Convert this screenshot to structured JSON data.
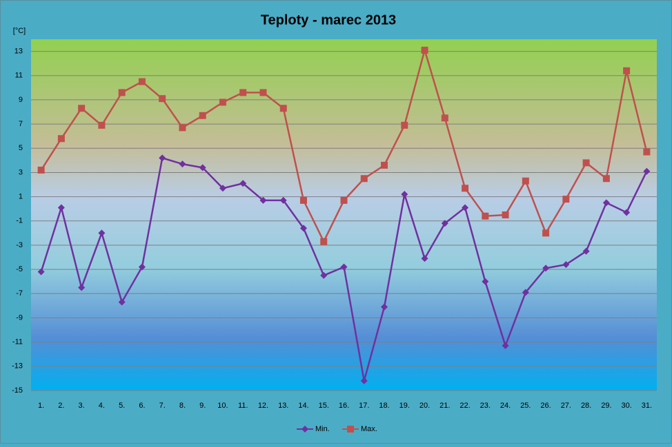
{
  "chart_data": {
    "type": "line",
    "title": "Teploty - marec 2013",
    "y_label": "[°C]",
    "categories": [
      "1.",
      "2.",
      "3.",
      "4.",
      "5.",
      "6.",
      "7.",
      "8.",
      "9.",
      "10.",
      "11.",
      "12.",
      "13.",
      "14.",
      "15.",
      "16.",
      "17.",
      "18.",
      "19.",
      "20.",
      "21.",
      "22.",
      "23.",
      "24.",
      "25.",
      "26.",
      "27.",
      "28.",
      "29.",
      "30.",
      "31."
    ],
    "series": [
      {
        "name": "Min.",
        "color": "#7030a0",
        "marker": "diamond",
        "values": [
          -5.2,
          0.1,
          -6.5,
          -2.0,
          -7.7,
          -4.8,
          4.2,
          3.7,
          3.4,
          1.7,
          2.1,
          0.7,
          0.7,
          -1.6,
          -5.5,
          -4.8,
          -14.2,
          -8.1,
          1.2,
          -4.1,
          -1.2,
          0.1,
          -6.0,
          -11.3,
          -6.9,
          -4.9,
          -4.6,
          -3.5,
          0.5,
          -0.3,
          3.1
        ]
      },
      {
        "name": "Max.",
        "color": "#c0504d",
        "marker": "square",
        "values": [
          3.2,
          5.8,
          8.3,
          6.9,
          9.6,
          10.5,
          9.1,
          6.7,
          7.7,
          8.8,
          9.6,
          9.6,
          8.3,
          0.7,
          -2.7,
          0.7,
          2.5,
          3.6,
          6.9,
          13.1,
          7.5,
          1.7,
          -0.6,
          -0.5,
          2.3,
          -2.0,
          0.8,
          3.8,
          2.5,
          11.4,
          4.7
        ]
      }
    ],
    "ylim": [
      -15,
      14
    ],
    "yticks": [
      -15,
      -13,
      -11,
      -9,
      -7,
      -5,
      -3,
      -1,
      1,
      3,
      5,
      7,
      9,
      11,
      13
    ],
    "grid": true,
    "legend": "bottom"
  }
}
